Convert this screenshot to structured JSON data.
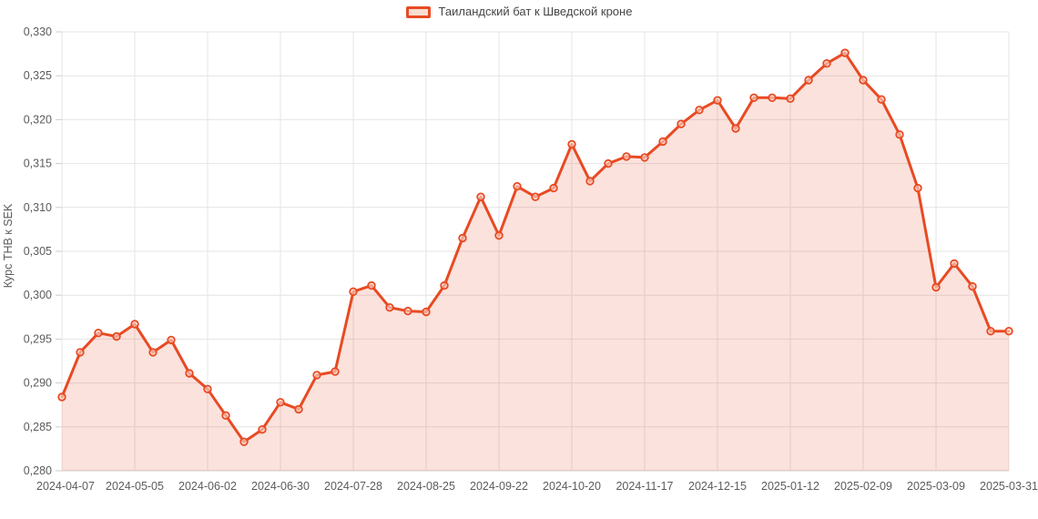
{
  "legend": {
    "label": "Таиландский бат к Шведской кроне"
  },
  "colors": {
    "line": "#e84a23",
    "area_fill": "rgba(232,74,35,0.16)",
    "marker_center": "rgba(251,220,208,0.6)",
    "grid": "#e4e4e4",
    "axis_line": "#cccccc",
    "tick_text": "#5c5c5c",
    "axis_title_text": "#9a9a9a",
    "legend_text": "#464646",
    "background": "#ffffff"
  },
  "chart_data": {
    "type": "line",
    "title": "",
    "xlabel": "",
    "ylabel": "Курс THB к SEK",
    "legend_position": "top-center",
    "grid": true,
    "area": true,
    "marker": "hollow-circle",
    "ylim": [
      0.28,
      0.33
    ],
    "y_tick_step": 0.005,
    "y_tick_labels": [
      "0,280",
      "0,285",
      "0,290",
      "0,295",
      "0,300",
      "0,305",
      "0,310",
      "0,315",
      "0,320",
      "0,325",
      "0,330"
    ],
    "x_tick_every": 4,
    "x_tick_labels": [
      "2024-04-07",
      "2024-05-05",
      "2024-06-02",
      "2024-06-30",
      "2024-07-28",
      "2024-08-25",
      "2024-09-22",
      "2024-10-20",
      "2024-11-17",
      "2024-12-15",
      "2025-01-12",
      "2025-02-09",
      "2025-03-09",
      "2025-03-31"
    ],
    "decimal_separator": ",",
    "x": [
      "2024-04-07",
      "2024-04-14",
      "2024-04-21",
      "2024-04-28",
      "2024-05-05",
      "2024-05-12",
      "2024-05-19",
      "2024-05-26",
      "2024-06-02",
      "2024-06-09",
      "2024-06-16",
      "2024-06-23",
      "2024-06-30",
      "2024-07-07",
      "2024-07-14",
      "2024-07-21",
      "2024-07-28",
      "2024-08-04",
      "2024-08-11",
      "2024-08-18",
      "2024-08-25",
      "2024-09-01",
      "2024-09-08",
      "2024-09-15",
      "2024-09-22",
      "2024-09-29",
      "2024-10-06",
      "2024-10-13",
      "2024-10-20",
      "2024-10-27",
      "2024-11-03",
      "2024-11-10",
      "2024-11-17",
      "2024-11-24",
      "2024-12-01",
      "2024-12-08",
      "2024-12-15",
      "2024-12-22",
      "2024-12-29",
      "2025-01-05",
      "2025-01-12",
      "2025-01-19",
      "2025-01-26",
      "2025-02-02",
      "2025-02-09",
      "2025-02-16",
      "2025-02-23",
      "2025-03-02",
      "2025-03-09",
      "2025-03-16",
      "2025-03-23",
      "2025-03-30",
      "2025-03-31"
    ],
    "series": [
      {
        "name": "Таиландский бат к Шведской кроне",
        "values": [
          0.2884,
          0.2935,
          0.2957,
          0.2953,
          0.2967,
          0.2935,
          0.2949,
          0.2911,
          0.2893,
          0.2863,
          0.2833,
          0.2847,
          0.2878,
          0.287,
          0.2909,
          0.2913,
          0.3004,
          0.3011,
          0.2986,
          0.2982,
          0.2981,
          0.3011,
          0.3065,
          0.3112,
          0.3068,
          0.3124,
          0.3112,
          0.3122,
          0.3172,
          0.313,
          0.315,
          0.3158,
          0.3157,
          0.3175,
          0.3195,
          0.3211,
          0.3222,
          0.319,
          0.3225,
          0.3225,
          0.3224,
          0.3245,
          0.3264,
          0.3276,
          0.3245,
          0.3223,
          0.3183,
          0.3122,
          0.3009,
          0.3036,
          0.301,
          0.2959,
          0.2959
        ]
      }
    ]
  }
}
